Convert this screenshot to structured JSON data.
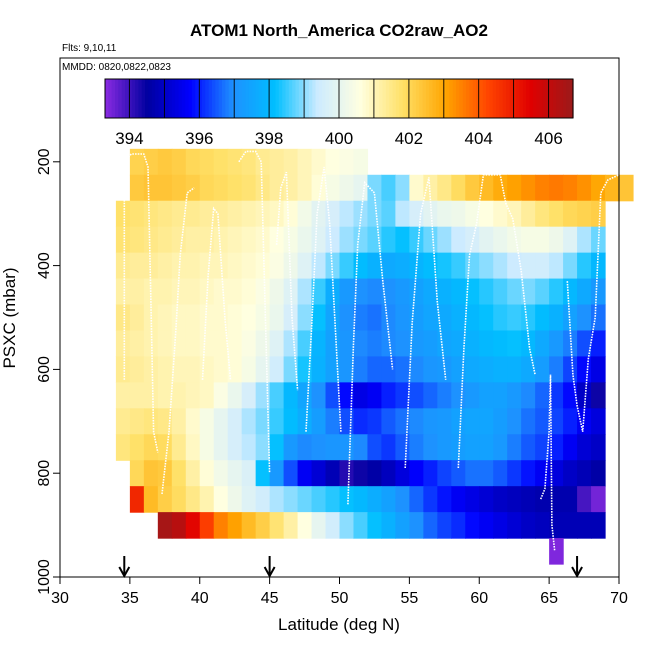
{
  "chart_data": {
    "type": "heatmap",
    "title": "ATOM1 North_America CO2raw_AO2",
    "subtitle_flights": "Flts: 9,10,11",
    "subtitle_dates": "MMDD: 0820,0822,0823",
    "xlabel": "Latitude (deg N)",
    "ylabel": "PSXC (mbar)",
    "xlim": [
      30,
      70
    ],
    "ylim": [
      1000,
      0
    ],
    "x_ticks": [
      30,
      35,
      40,
      45,
      50,
      55,
      60,
      65,
      70
    ],
    "y_ticks": [
      200,
      400,
      600,
      800,
      1000
    ],
    "colorbar": {
      "min": 393.3,
      "max": 406.7,
      "ticks": [
        394,
        396,
        398,
        400,
        402,
        404,
        406
      ],
      "colors": [
        "#8a2be2",
        "#0000a0",
        "#0000ff",
        "#1e90ff",
        "#00bfff",
        "#cdebff",
        "#ffffe0",
        "#ffe066",
        "#ffa500",
        "#ff4500",
        "#e00000",
        "#9b1a1a"
      ]
    },
    "arrows_latitude": [
      34.6,
      45.0,
      67.0
    ],
    "curtain": {
      "lat_step": 1,
      "p_step": 50,
      "rows": [
        {
          "p": 200,
          "lat_start": 35,
          "values": [
            402.1,
            402.2,
            402.3,
            402.2,
            402.0,
            401.9,
            401.8,
            401.7,
            401.6,
            401.4,
            401.3,
            401.2,
            401.0,
            400.8,
            400.6,
            400.5,
            400.4
          ]
        },
        {
          "p": 250,
          "lat_start": 35,
          "values": [
            402.3,
            402.4,
            402.4,
            402.3,
            402.2,
            402.0,
            401.9,
            401.8,
            401.7,
            401.5,
            401.3,
            401.2,
            401.0,
            400.7,
            400.4,
            400.2,
            400.0,
            398.9,
            398.6,
            399.0,
            400.8,
            401.2,
            401.5,
            401.9,
            402.3,
            402.6,
            402.9,
            403.1,
            403.3,
            403.5,
            403.6,
            403.5,
            403.3,
            403.0,
            402.7,
            402.4
          ]
        },
        {
          "p": 300,
          "lat_start": 34,
          "values": [
            401.8,
            401.7,
            401.6,
            401.5,
            401.4,
            401.4,
            401.3,
            401.3,
            401.2,
            401.1,
            401.0,
            400.9,
            400.7,
            400.3,
            399.9,
            399.6,
            399.3,
            399.1,
            398.9,
            398.7,
            399.3,
            399.6,
            399.9,
            400.1,
            400.2,
            400.4,
            400.6,
            400.8,
            401.0,
            401.3,
            401.6,
            401.8,
            402.0,
            402.1,
            402.2
          ]
        },
        {
          "p": 350,
          "lat_start": 34,
          "values": [
            401.7,
            401.6,
            401.5,
            401.4,
            401.3,
            401.2,
            401.2,
            401.1,
            401.0,
            400.9,
            400.8,
            400.6,
            400.4,
            400.1,
            399.8,
            399.4,
            399.1,
            398.9,
            398.7,
            398.4,
            398.2,
            398.5,
            398.8,
            399.1,
            399.4,
            399.6,
            399.9,
            400.1,
            400.3,
            400.4,
            400.4,
            400.2,
            399.8,
            399.2,
            398.8
          ]
        },
        {
          "p": 400,
          "lat_start": 34,
          "values": [
            401.4,
            401.3,
            401.3,
            401.2,
            401.1,
            401.1,
            401.0,
            401.0,
            400.9,
            400.8,
            400.7,
            400.5,
            400.2,
            399.8,
            399.3,
            398.9,
            398.5,
            398.1,
            397.8,
            397.6,
            397.7,
            397.9,
            398.1,
            398.3,
            398.5,
            398.8,
            399.0,
            399.2,
            399.4,
            399.5,
            399.5,
            399.3,
            398.9,
            398.4,
            398.0
          ]
        },
        {
          "p": 450,
          "lat_start": 34,
          "values": [
            401.2,
            401.2,
            401.1,
            401.1,
            401.0,
            401.0,
            400.9,
            400.8,
            400.8,
            400.7,
            400.5,
            400.2,
            399.8,
            399.2,
            398.5,
            397.7,
            397.2,
            397.0,
            396.9,
            397.0,
            397.2,
            397.4,
            397.6,
            397.8,
            398.0,
            398.2,
            398.4,
            398.6,
            398.8,
            398.9,
            398.7,
            398.4,
            398.0,
            397.6,
            397.2
          ]
        },
        {
          "p": 500,
          "lat_start": 34,
          "values": [
            401.5,
            401.3,
            401.1,
            401.0,
            400.9,
            400.9,
            400.8,
            400.8,
            400.7,
            400.6,
            400.4,
            400.1,
            399.6,
            399.0,
            398.2,
            397.5,
            397.0,
            396.8,
            396.7,
            396.9,
            397.1,
            397.3,
            397.5,
            397.6,
            397.8,
            398.0,
            398.2,
            398.4,
            398.5,
            398.4,
            398.1,
            397.8,
            397.4,
            397.0,
            396.7
          ]
        },
        {
          "p": 550,
          "lat_start": 34,
          "values": [
            401.3,
            401.2,
            401.1,
            401.0,
            400.9,
            400.9,
            400.8,
            400.8,
            400.7,
            400.5,
            400.2,
            399.8,
            399.2,
            398.6,
            397.9,
            397.4,
            397.1,
            396.9,
            396.8,
            396.9,
            397.0,
            397.2,
            397.3,
            397.5,
            397.6,
            397.8,
            398.0,
            398.1,
            398.2,
            398.0,
            397.6,
            397.2,
            396.8,
            396.4,
            396.0
          ]
        },
        {
          "p": 600,
          "lat_start": 34,
          "values": [
            401.4,
            401.3,
            401.2,
            401.1,
            401.0,
            401.0,
            400.9,
            400.8,
            400.7,
            400.4,
            400.0,
            399.5,
            398.9,
            398.3,
            397.8,
            397.4,
            397.1,
            396.8,
            396.6,
            396.6,
            396.7,
            396.9,
            397.1,
            397.2,
            397.4,
            397.6,
            397.7,
            397.8,
            397.8,
            397.6,
            397.3,
            396.8,
            396.3,
            395.8,
            395.4
          ]
        },
        {
          "p": 650,
          "lat_start": 34,
          "values": [
            401.2,
            401.2,
            401.2,
            401.1,
            401.1,
            401.0,
            400.9,
            400.5,
            400.1,
            399.6,
            399.1,
            398.6,
            398.0,
            397.5,
            397.0,
            396.4,
            395.8,
            395.4,
            395.6,
            396.0,
            396.2,
            396.4,
            396.6,
            396.8,
            397.0,
            397.2,
            397.4,
            397.4,
            397.2,
            396.9,
            396.6,
            396.2,
            395.8,
            395.0,
            394.4
          ]
        },
        {
          "p": 700,
          "lat_start": 34,
          "values": [
            401.4,
            401.5,
            401.6,
            401.5,
            401.2,
            400.8,
            400.4,
            400.0,
            399.6,
            399.2,
            398.9,
            398.5,
            398.1,
            397.7,
            397.3,
            396.8,
            396.4,
            396.1,
            396.2,
            396.5,
            396.7,
            396.9,
            397.1,
            397.2,
            397.4,
            397.5,
            397.5,
            397.3,
            397.0,
            396.7,
            396.5,
            396.3,
            396.0,
            395.6,
            395.3
          ]
        },
        {
          "p": 750,
          "lat_start": 34,
          "values": [
            401.6,
            401.8,
            402.0,
            401.9,
            401.4,
            400.9,
            400.4,
            400.0,
            399.6,
            399.3,
            399.0,
            398.2,
            397.2,
            396.9,
            397.0,
            397.1,
            397.1,
            396.9,
            396.4,
            396.2,
            396.5,
            396.8,
            397.0,
            397.2,
            397.3,
            397.4,
            397.4,
            397.2,
            396.8,
            396.5,
            396.3,
            396.0,
            395.6,
            395.2,
            395.0
          ]
        },
        {
          "p": 800,
          "lat_start": 35,
          "values": [
            402.0,
            402.4,
            402.3,
            401.8,
            401.2,
            400.7,
            400.3,
            400.0,
            399.7,
            398.2,
            397.2,
            396.4,
            395.6,
            395.2,
            394.8,
            394.2,
            394.4,
            394.6,
            394.9,
            395.3,
            395.7,
            396.0,
            396.3,
            396.5,
            396.7,
            396.7,
            396.5,
            396.2,
            395.9,
            395.6,
            395.3,
            395.0,
            394.8,
            394.6
          ]
        },
        {
          "p": 850,
          "lat_start": 35,
          "values": [
            404.8,
            402.6,
            402.2,
            401.9,
            401.5,
            401.1,
            400.6,
            400.2,
            399.8,
            399.5,
            399.2,
            399.0,
            398.8,
            398.6,
            398.4,
            398.2,
            398.0,
            397.7,
            397.4,
            397.0,
            396.6,
            396.2,
            395.9,
            395.6,
            395.4,
            395.2,
            395.0,
            394.9,
            394.8,
            394.7,
            394.7,
            394.7,
            393.9,
            393.5
          ]
        },
        {
          "p": 900,
          "lat_start": 37,
          "values": [
            406.5,
            406.2,
            405.4,
            404.4,
            403.5,
            403.1,
            402.6,
            402.2,
            401.7,
            401.2,
            400.6,
            400.0,
            399.5,
            399.0,
            398.6,
            398.2,
            397.8,
            397.4,
            397.0,
            396.6,
            396.3,
            396.1,
            395.8,
            395.6,
            395.4,
            395.2,
            395.0,
            394.9,
            394.8,
            394.8,
            394.8,
            394.8
          ]
        },
        {
          "p": 950,
          "lat_start": 65,
          "values": [
            393.4
          ]
        }
      ]
    },
    "flight_profiles_description": "white dotted aircraft vertical profile tracks"
  }
}
